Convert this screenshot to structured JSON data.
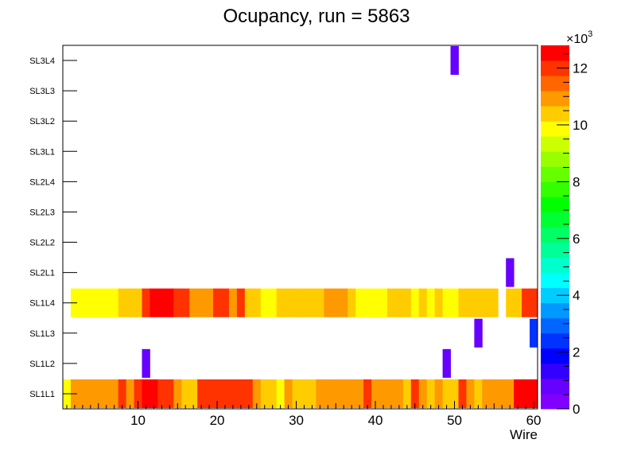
{
  "chart_data": {
    "type": "heatmap",
    "title": "Ocupancy, run = 5863",
    "xlabel": "Wire",
    "ylabel": "",
    "xlim": [
      0.5,
      60.5
    ],
    "x_ticks": [
      10,
      20,
      30,
      40,
      50,
      60
    ],
    "y_categories": [
      "SL1L1",
      "SL1L2",
      "SL1L3",
      "SL1L4",
      "SL2L1",
      "SL2L2",
      "SL2L3",
      "SL2L4",
      "SL3L1",
      "SL3L2",
      "SL3L3",
      "SL3L4"
    ],
    "z_range": [
      0,
      12800
    ],
    "z_ticks": [
      0,
      2,
      4,
      6,
      8,
      10,
      12
    ],
    "z_multiplier_label": "×10",
    "z_multiplier_exponent": "3",
    "cells": [
      {
        "layer": "SL1L1",
        "values": [
          9800,
          11000,
          11000,
          11000,
          11000,
          11000,
          11000,
          12000,
          11000,
          12000,
          12800,
          12800,
          11800,
          12000,
          11000,
          10500,
          10500,
          12200,
          12200,
          12200,
          12200,
          12200,
          12200,
          12200,
          11000,
          10500,
          10500,
          9800,
          11000,
          10500,
          10500,
          10500,
          11000,
          11000,
          11000,
          11000,
          11000,
          11000,
          12000,
          11000,
          11000,
          11000,
          11000,
          10500,
          12000,
          11000,
          10500,
          11000,
          10500,
          10500,
          12000,
          11000,
          10500,
          11000,
          11000,
          11000,
          11000,
          12800,
          12800,
          12800
        ]
      },
      {
        "layer": "SL1L2",
        "cols": [
          11,
          49
        ],
        "value": 800
      },
      {
        "layer": "SL1L3",
        "cols": [
          53
        ],
        "value": 800
      },
      {
        "layer": "SL1L3",
        "cols": [
          60
        ],
        "value": 2300
      },
      {
        "layer": "SL1L4",
        "values": [
          null,
          9800,
          9800,
          9800,
          9800,
          9800,
          9800,
          10500,
          10500,
          10500,
          12000,
          12800,
          12800,
          12800,
          11800,
          12000,
          11000,
          11000,
          11000,
          12000,
          12000,
          11000,
          11800,
          10500,
          10500,
          9800,
          9800,
          10500,
          10500,
          10500,
          10500,
          10500,
          10500,
          11000,
          11000,
          11000,
          10500,
          9800,
          9800,
          9800,
          9800,
          10500,
          10500,
          10500,
          9800,
          10500,
          9800,
          10500,
          9800,
          9800,
          10500,
          10500,
          10500,
          10500,
          10500,
          null,
          10500,
          10500,
          12200,
          12200
        ]
      },
      {
        "layer": "SL2L1",
        "cols": [
          57
        ],
        "value": 800
      },
      {
        "layer": "SL3L4",
        "cols": [
          50
        ],
        "value": 800
      }
    ],
    "palette": [
      "#8000ff",
      "#6600ff",
      "#3300ff",
      "#0000ff",
      "#0033ff",
      "#0066ff",
      "#0099ff",
      "#00ccff",
      "#00ffff",
      "#00ffcc",
      "#00ff99",
      "#00ff66",
      "#00ff33",
      "#00ff00",
      "#33ff00",
      "#66ff00",
      "#99ff00",
      "#ccff00",
      "#ffff00",
      "#ffcc00",
      "#ff9900",
      "#ff6600",
      "#ff3300",
      "#ff0000"
    ],
    "grid": false,
    "colorbar": "right"
  }
}
